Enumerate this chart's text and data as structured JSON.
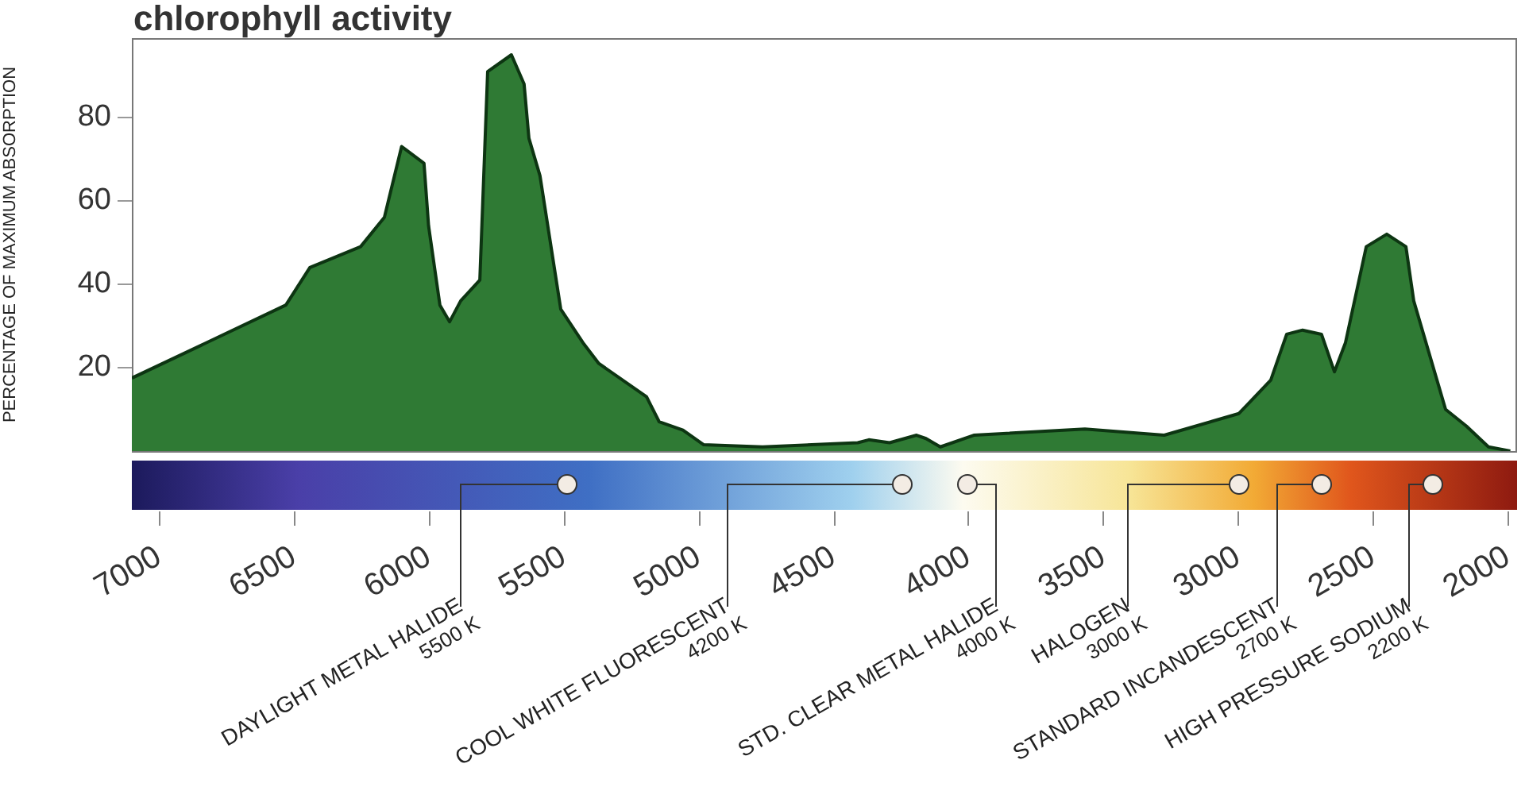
{
  "chart_data": {
    "type": "area",
    "title": "chlorophyll activity",
    "ylabel": "PERCENTAGE OF MAXIMUM ABSORPTION",
    "x": [
      7100,
      6529,
      6440,
      6252,
      6164,
      6100,
      6017,
      6000,
      5958,
      5922,
      5881,
      5810,
      5781,
      5693,
      5646,
      5628,
      5587,
      5510,
      5428,
      5369,
      5192,
      5145,
      5057,
      4980,
      4762,
      4409,
      4368,
      4291,
      4191,
      4156,
      4103,
      3979,
      3567,
      3273,
      2996,
      2878,
      2819,
      2760,
      2690,
      2642,
      2601,
      2524,
      2448,
      2377,
      2348,
      2230,
      2153,
      2071,
      1990
    ],
    "series": [
      {
        "color": "#2f7a34",
        "values": [
          17.5,
          35,
          44,
          49,
          56,
          73,
          69,
          54,
          35,
          31,
          36,
          41,
          91,
          95,
          88,
          75,
          66,
          34,
          26,
          21,
          13,
          7,
          5,
          1.5,
          1,
          2,
          2.7,
          2,
          3.8,
          3,
          1,
          3.8,
          5.3,
          3.8,
          9,
          17,
          28,
          29,
          28,
          19,
          26,
          49,
          52,
          49,
          36,
          10,
          6,
          1,
          0
        ]
      }
    ],
    "xlim": [
      7100,
      1965
    ],
    "xticks": [
      7000,
      6500,
      6000,
      5500,
      5000,
      4500,
      4000,
      3500,
      3000,
      2500,
      2000
    ],
    "ylim": [
      0,
      99
    ],
    "yticks": [
      20,
      40,
      60,
      80
    ],
    "grid": false,
    "legend": false,
    "annotations": [
      "DAYLIGHT METAL HALIDE",
      "5500 K",
      "COOL WHITE FLUORESCENT",
      "4200 K",
      "STD. CLEAR METAL HALIDE",
      "4000 K",
      "HALOGEN",
      "3000 K",
      "STANDARD INCANDESCENT",
      "2700 K",
      "HIGH PRESSURE SODIUM",
      "2200 K"
    ]
  }
}
